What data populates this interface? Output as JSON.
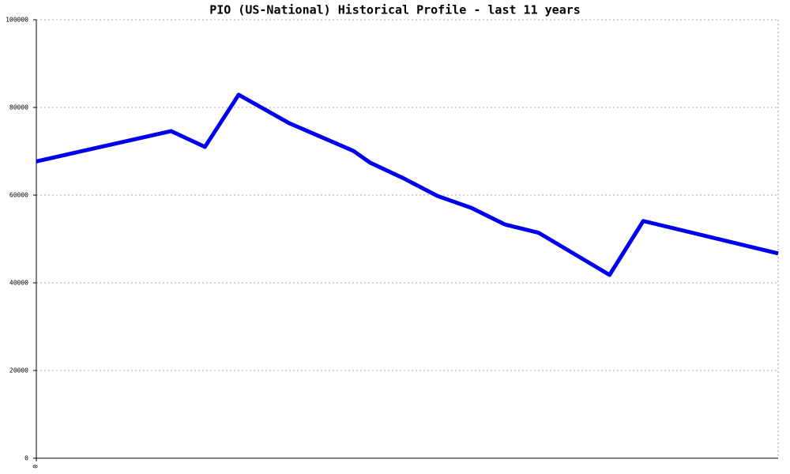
{
  "chart_data": {
    "type": "line",
    "title": "PIO (US-National) Historical Profile - last 11 years",
    "x": [
      0,
      4.0,
      5.0,
      6.0,
      7.5,
      9.4,
      9.9,
      10.9,
      11.9,
      12.9,
      13.9,
      14.9,
      17.0,
      18.0,
      22.0
    ],
    "series": [
      {
        "name": "PIO",
        "color": "#0000ee",
        "values": [
          67700,
          74600,
          71000,
          82900,
          76400,
          70100,
          67400,
          63800,
          59800,
          57100,
          53300,
          51400,
          41800,
          54100,
          46700
        ]
      }
    ],
    "xlim": [
      0,
      22
    ],
    "xticks": [
      0
    ],
    "ylim": [
      0,
      100000
    ],
    "yticks": [
      0,
      20000,
      40000,
      60000,
      80000,
      100000
    ],
    "grid": true
  }
}
